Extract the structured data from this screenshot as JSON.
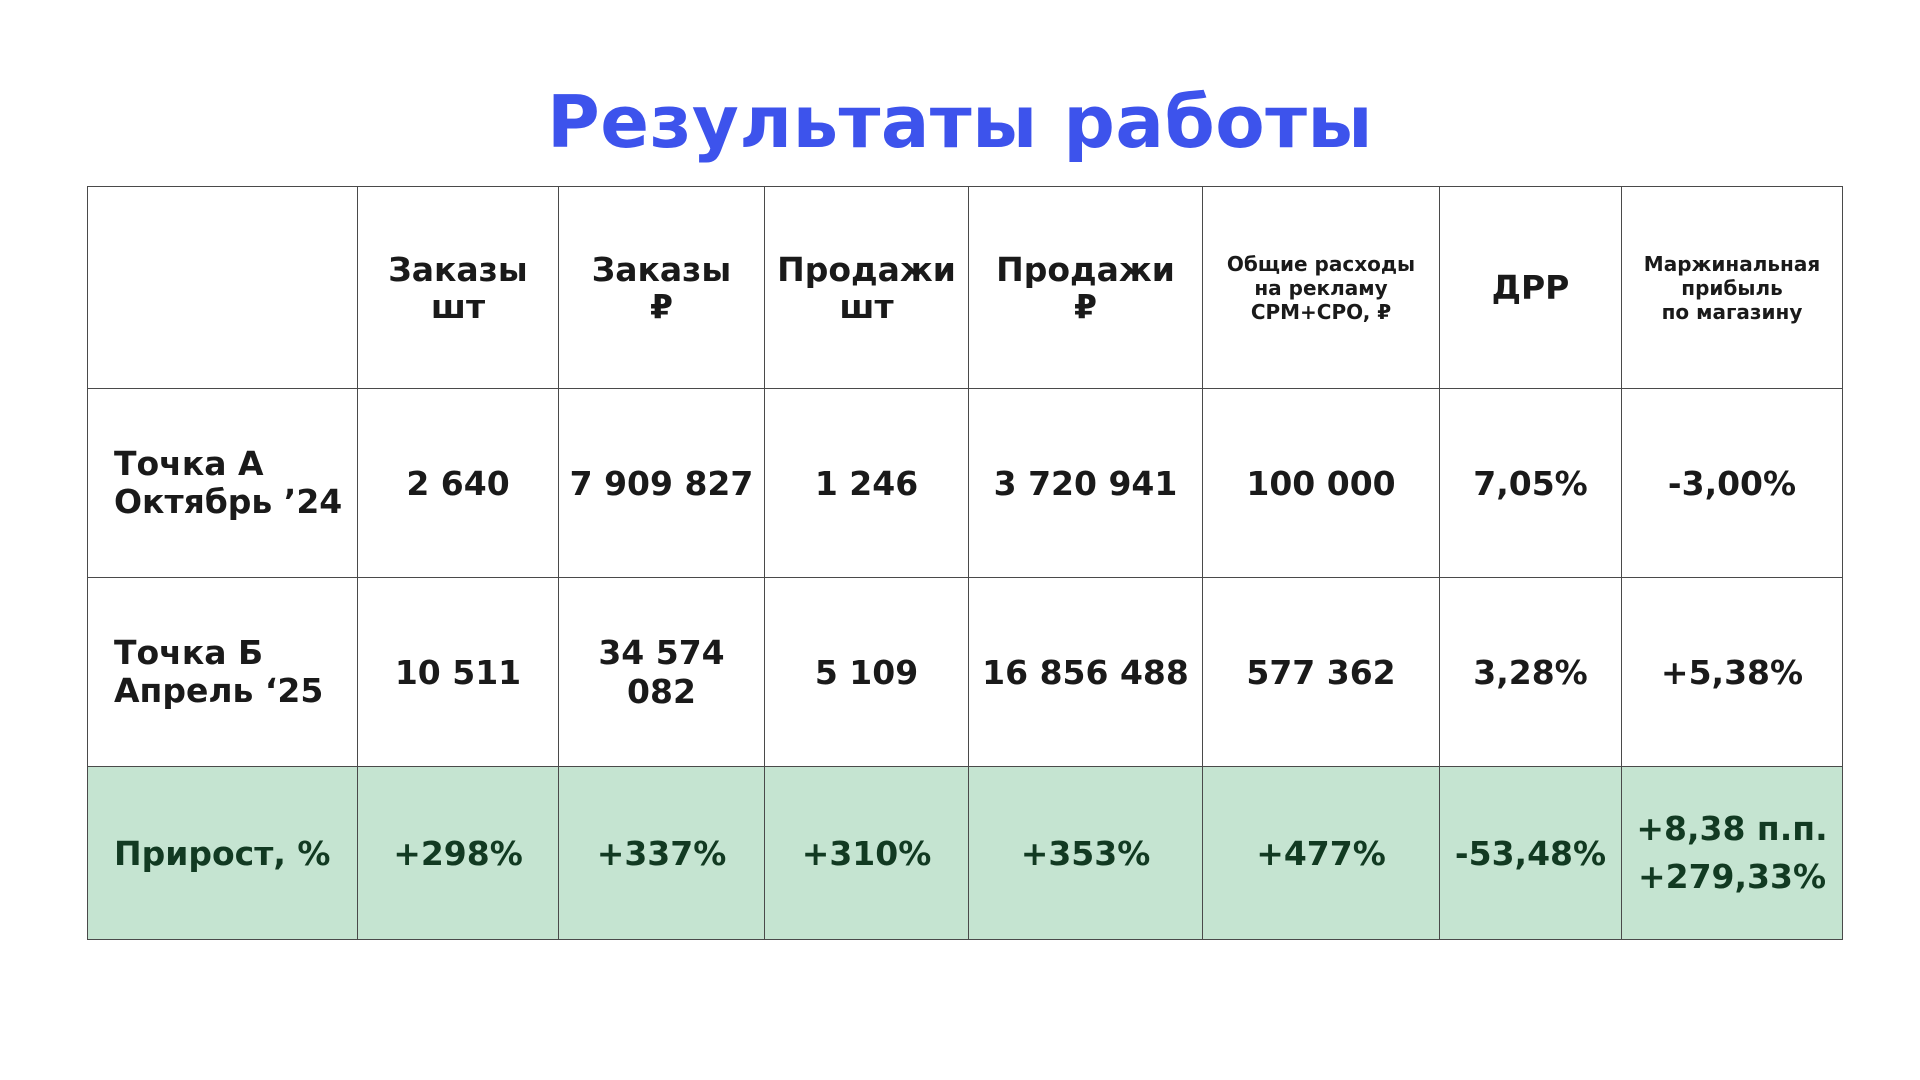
{
  "title": "Результаты работы",
  "table": {
    "headers": [
      "",
      "Заказы\nшт",
      "Заказы\n₽",
      "Продажи\nшт",
      "Продажи\n₽",
      "Общие расходы\nна рекламу\nCPM+CPO, ₽",
      "ДРР",
      "Маржинальная\nприбыль\nпо магазину"
    ],
    "rows": [
      {
        "label": "Точка А\nОктябрь ’24",
        "values": [
          "2 640",
          "7 909 827",
          "1 246",
          "3 720 941",
          "100 000",
          "7,05%",
          "-3,00%"
        ]
      },
      {
        "label": "Точка Б\nАпрель ‘25",
        "values": [
          "10 511",
          "34 574 082",
          "5 109",
          "16 856 488",
          "577 362",
          "3,28%",
          "+5,38%"
        ]
      }
    ],
    "growth": {
      "label": "Прирост, %",
      "values": [
        "+298%",
        "+337%",
        "+310%",
        "+353%",
        "+477%",
        "-53,48%"
      ],
      "margin_values": [
        "+8,38 п.п.",
        "+279,33%"
      ]
    }
  },
  "colors": {
    "title": "#3d53ec",
    "growth_row_bg": "#c5e4d1",
    "growth_row_text": "#123a22",
    "border": "#4a4a4a"
  }
}
